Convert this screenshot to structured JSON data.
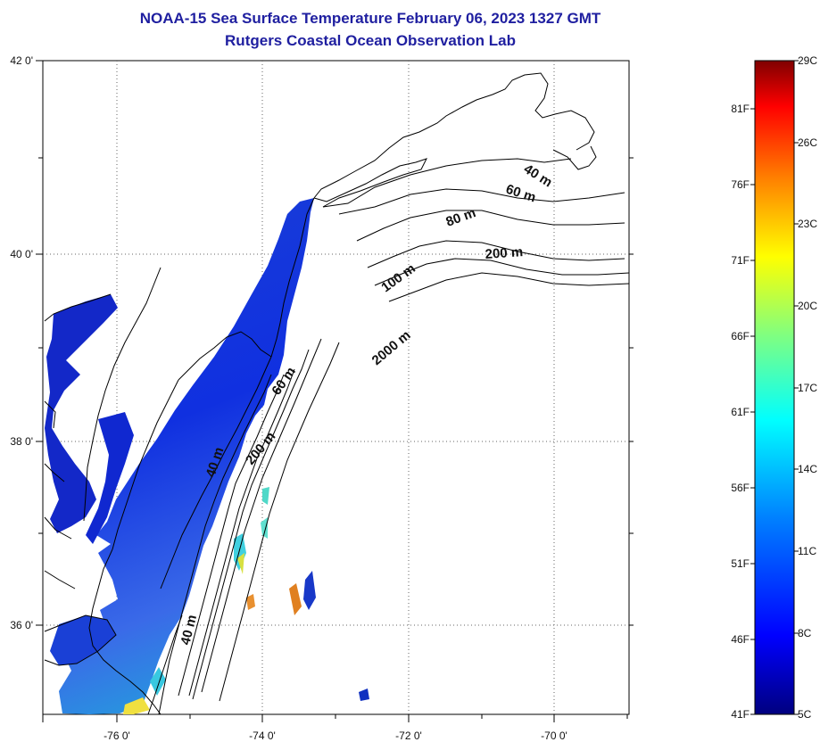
{
  "title": {
    "line1": "NOAA-15 Sea Surface Temperature February 06, 2023 1327 GMT",
    "line2": "Rutgers Coastal Ocean Observation Lab"
  },
  "map": {
    "x_ticks": [
      "-76 0'",
      "-74 0'",
      "-72 0'",
      "-70 0'"
    ],
    "y_ticks": [
      "42 0'",
      "40 0'",
      "38 0'",
      "36 0'"
    ],
    "contour_labels": [
      "40 m",
      "60 m",
      "80 m",
      "200 m",
      "100 m",
      "2000 m",
      "60 m",
      "200 m",
      "40 m",
      "40 m"
    ]
  },
  "colorbar": {
    "celsius_labels": [
      "29C",
      "26C",
      "23C",
      "20C",
      "17C",
      "14C",
      "11C",
      "8C",
      "5C"
    ],
    "fahrenheit_labels": [
      "81F",
      "76F",
      "71F",
      "66F",
      "61F",
      "56F",
      "51F",
      "46F",
      "41F"
    ],
    "colors": [
      "#00007f",
      "#0000ff",
      "#0080ff",
      "#00ffff",
      "#80ff80",
      "#ffff00",
      "#ff8000",
      "#ff0000",
      "#7f0000"
    ]
  }
}
